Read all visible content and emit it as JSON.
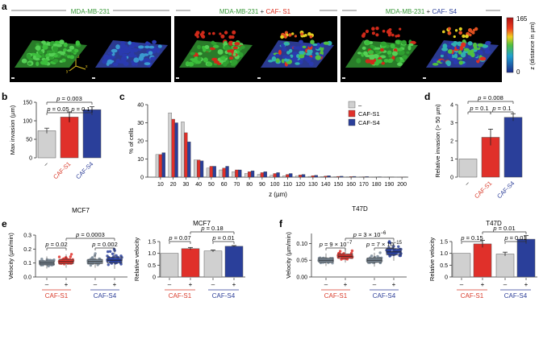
{
  "panel_letters": {
    "a": "a",
    "b": "b",
    "c": "c",
    "d": "d",
    "e": "e",
    "f": "f"
  },
  "panel_a": {
    "titles": [
      {
        "parts": [
          {
            "t": "MDA-MB-231",
            "c": "#3a9a3a"
          }
        ]
      },
      {
        "parts": [
          {
            "t": "MDA-MB-231",
            "c": "#3a9a3a"
          },
          {
            "t": " + ",
            "c": "#333333"
          },
          {
            "t": "CAF- S1",
            "c": "#e03020"
          }
        ]
      },
      {
        "parts": [
          {
            "t": "MDA-MB-231",
            "c": "#3a9a3a"
          },
          {
            "t": " + ",
            "c": "#333333"
          },
          {
            "t": "CAF- S4",
            "c": "#2a3f9a"
          }
        ]
      }
    ],
    "colorbar": {
      "max": "165",
      "min": "0",
      "label": "z (distance in µm)"
    },
    "axes_letters": [
      "z",
      "y",
      "x"
    ]
  },
  "colors": {
    "control": "#d0d0d0",
    "s1": "#e0302a",
    "s4": "#2a3f9a",
    "s1_text": "#d93a2a",
    "s4_text": "#2c3e98",
    "green": "#3a9a3a"
  },
  "chart_data": [
    {
      "id": "b",
      "type": "bar",
      "ylabel": "Max invasion (µm)",
      "ylim": [
        0,
        150
      ],
      "yticks": [
        "0",
        "50",
        "100",
        "150"
      ],
      "categories": [
        "–",
        "CAF-S1",
        "CAF-S4"
      ],
      "values": [
        73,
        110,
        130
      ],
      "errors": [
        7,
        14,
        8
      ],
      "pvalues": [
        "p = 0.003",
        "p = 0.05",
        "p = 0.1"
      ]
    },
    {
      "id": "c",
      "type": "bar",
      "ylabel": "% of cells",
      "xlabel": "z (µm)",
      "ylim": [
        0,
        40
      ],
      "yticks": [
        "0",
        "10",
        "20",
        "30",
        "40"
      ],
      "categories": [
        "10",
        "20",
        "30",
        "40",
        "50",
        "60",
        "70",
        "80",
        "90",
        "100",
        "110",
        "120",
        "130",
        "140",
        "150",
        "160",
        "170",
        "180",
        "190",
        "200"
      ],
      "legend": [
        "–",
        "CAF-S1",
        "CAF-S4"
      ],
      "series": [
        {
          "name": "–",
          "values": [
            12.5,
            35.5,
            30.5,
            9.5,
            5,
            4,
            3,
            2,
            1.5,
            1,
            0.8,
            0.6,
            0.4,
            0.3,
            0.2,
            0.1,
            0.1,
            0.05,
            0.05,
            0.05
          ]
        },
        {
          "name": "CAF-S1",
          "values": [
            12.5,
            32,
            24.5,
            9.5,
            6,
            5,
            4,
            3,
            2.5,
            2,
            1.5,
            1.2,
            0.8,
            0.6,
            0.4,
            0.3,
            0.2,
            0.1,
            0.1,
            0.05
          ]
        },
        {
          "name": "CAF-S4",
          "values": [
            13.5,
            30,
            19.5,
            9,
            6,
            6,
            4,
            3.5,
            3,
            2.5,
            2,
            1.5,
            1,
            0.8,
            0.5,
            0.4,
            0.3,
            0.2,
            0.1,
            0.1
          ]
        }
      ]
    },
    {
      "id": "d",
      "type": "bar",
      "ylabel": "Relative invasion (> 50 µm)",
      "ylim": [
        0,
        4
      ],
      "yticks": [
        "0",
        "1",
        "2",
        "3",
        "4"
      ],
      "categories": [
        "–",
        "CAF-S1",
        "CAF-S4"
      ],
      "values": [
        1,
        2.2,
        3.3
      ],
      "errors": [
        0,
        0.45,
        0.2
      ],
      "pvalues": [
        "p = 0.008",
        "p = 0.1",
        "p = 0.1"
      ]
    },
    {
      "id": "e1",
      "type": "scatter",
      "title": "MCF7",
      "ylabel": "Velocity (µm/min)",
      "ylim": [
        0.0,
        0.3
      ],
      "yticks": [
        "0.0",
        "0.1",
        "0.2",
        "0.3"
      ],
      "tick_labels": [
        "–",
        "+",
        "–",
        "+"
      ],
      "groups": [
        "CAF-S1",
        "CAF-S4"
      ],
      "box_medians": [
        0.1,
        0.11,
        0.11,
        0.12
      ],
      "pvalues": [
        "p = 0.02",
        "p = 0.0003",
        "p = 0.002"
      ]
    },
    {
      "id": "e2",
      "type": "bar",
      "title": "MCF7",
      "ylabel": "Relative velocity",
      "ylim": [
        0,
        1.5
      ],
      "yticks": [
        "0",
        "0.5",
        "1.0",
        "1.5"
      ],
      "tick_labels": [
        "–",
        "+",
        "–",
        "+"
      ],
      "groups": [
        "CAF-S1",
        "CAF-S4"
      ],
      "values": [
        1.0,
        1.2,
        1.1,
        1.3
      ],
      "errors": [
        0,
        0.05,
        0.04,
        0.03
      ],
      "pvalues": [
        "p = 0.07",
        "p = 0.18",
        "p = 0.01"
      ]
    },
    {
      "id": "f1",
      "type": "scatter",
      "title": "T47D",
      "ylabel": "Velocity (µm/min)",
      "ylim": [
        0.0,
        0.13
      ],
      "yticks": [
        "0.00",
        "0.05",
        "0.10"
      ],
      "tick_labels": [
        "–",
        "+",
        "–",
        "+"
      ],
      "groups": [
        "CAF-S1",
        "CAF-S4"
      ],
      "box_medians": [
        0.05,
        0.062,
        0.05,
        0.075
      ],
      "pvalues": [
        "p = 9 × 10",
        "−7",
        "p = 3 × 10",
        "−6",
        "p = 7 × 10",
        "−15"
      ]
    },
    {
      "id": "f2",
      "type": "bar",
      "title": "T47D",
      "ylabel": "Relative velocity",
      "ylim": [
        0,
        1.5
      ],
      "yticks": [
        "0",
        "0.5",
        "1.0",
        "1.5"
      ],
      "tick_labels": [
        "–",
        "+",
        "–",
        "+"
      ],
      "groups": [
        "CAF-S1",
        "CAF-S4"
      ],
      "values": [
        1.0,
        1.4,
        0.97,
        1.6
      ],
      "errors": [
        0,
        0.15,
        0.08,
        0.15
      ],
      "pvalues": [
        "p = 0.15",
        "p = 0.01",
        "p = 0.01"
      ]
    }
  ]
}
